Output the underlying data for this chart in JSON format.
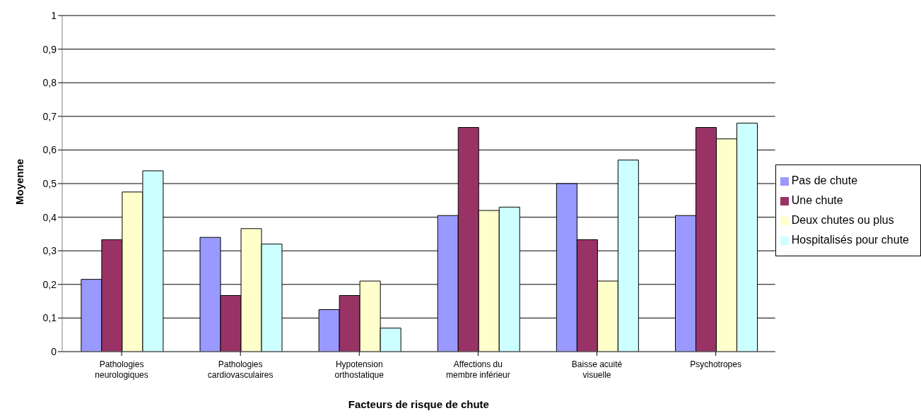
{
  "chart_data": {
    "type": "bar",
    "xlabel": "Facteurs de risque de chute",
    "ylabel": "Moyenne",
    "categories": [
      "Pathologies neurologiques",
      "Pathologies cardiovasculaires",
      "Hypotension orthostatique",
      "Affections du membre inférieur",
      "Baisse acuité visuelle",
      "Psychotropes"
    ],
    "series": [
      {
        "name": "Pas de chute",
        "color": "#9999ff",
        "values": [
          0.215,
          0.34,
          0.125,
          0.405,
          0.5,
          0.405
        ]
      },
      {
        "name": "Une chute",
        "color": "#993366",
        "values": [
          0.333,
          0.167,
          0.167,
          0.667,
          0.333,
          0.667
        ]
      },
      {
        "name": "Deux chutes ou plus",
        "color": "#ffffcc",
        "values": [
          0.475,
          0.366,
          0.21,
          0.42,
          0.21,
          0.633
        ]
      },
      {
        "name": "Hospitalisés pour chute",
        "color": "#ccffff",
        "values": [
          0.538,
          0.32,
          0.07,
          0.43,
          0.57,
          0.68
        ]
      }
    ],
    "ylim": [
      0,
      1
    ],
    "yticks": [
      0,
      {
        "value": 0.1,
        "label": "0,1"
      },
      {
        "value": 0.2,
        "label": "0,2"
      },
      {
        "value": 0.3,
        "label": "0,3"
      },
      {
        "value": 0.4,
        "label": "0,4"
      },
      {
        "value": 0.5,
        "label": "0,5"
      },
      {
        "value": 0.6,
        "label": "0,6"
      },
      {
        "value": 0.7,
        "label": "0,7"
      },
      {
        "value": 0.8,
        "label": "0,8"
      },
      {
        "value": 0.9,
        "label": "0,9"
      },
      1
    ],
    "grid": "y",
    "legend": "right"
  }
}
